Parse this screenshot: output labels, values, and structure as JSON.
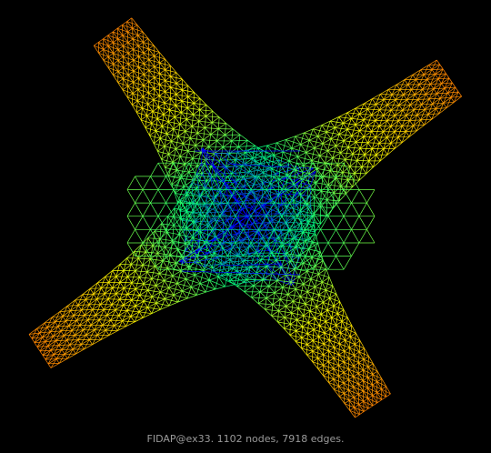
{
  "caption": "FIDAP@ex33. 1102 nodes, 7918 edges.",
  "colors": {
    "background": "#000000",
    "edge_short": "#0000ff",
    "edge_mid": "#00ff80",
    "edge_long": "#ffff00",
    "edge_tip": "#ff8000",
    "caption_text": "#9a9a9a"
  }
}
